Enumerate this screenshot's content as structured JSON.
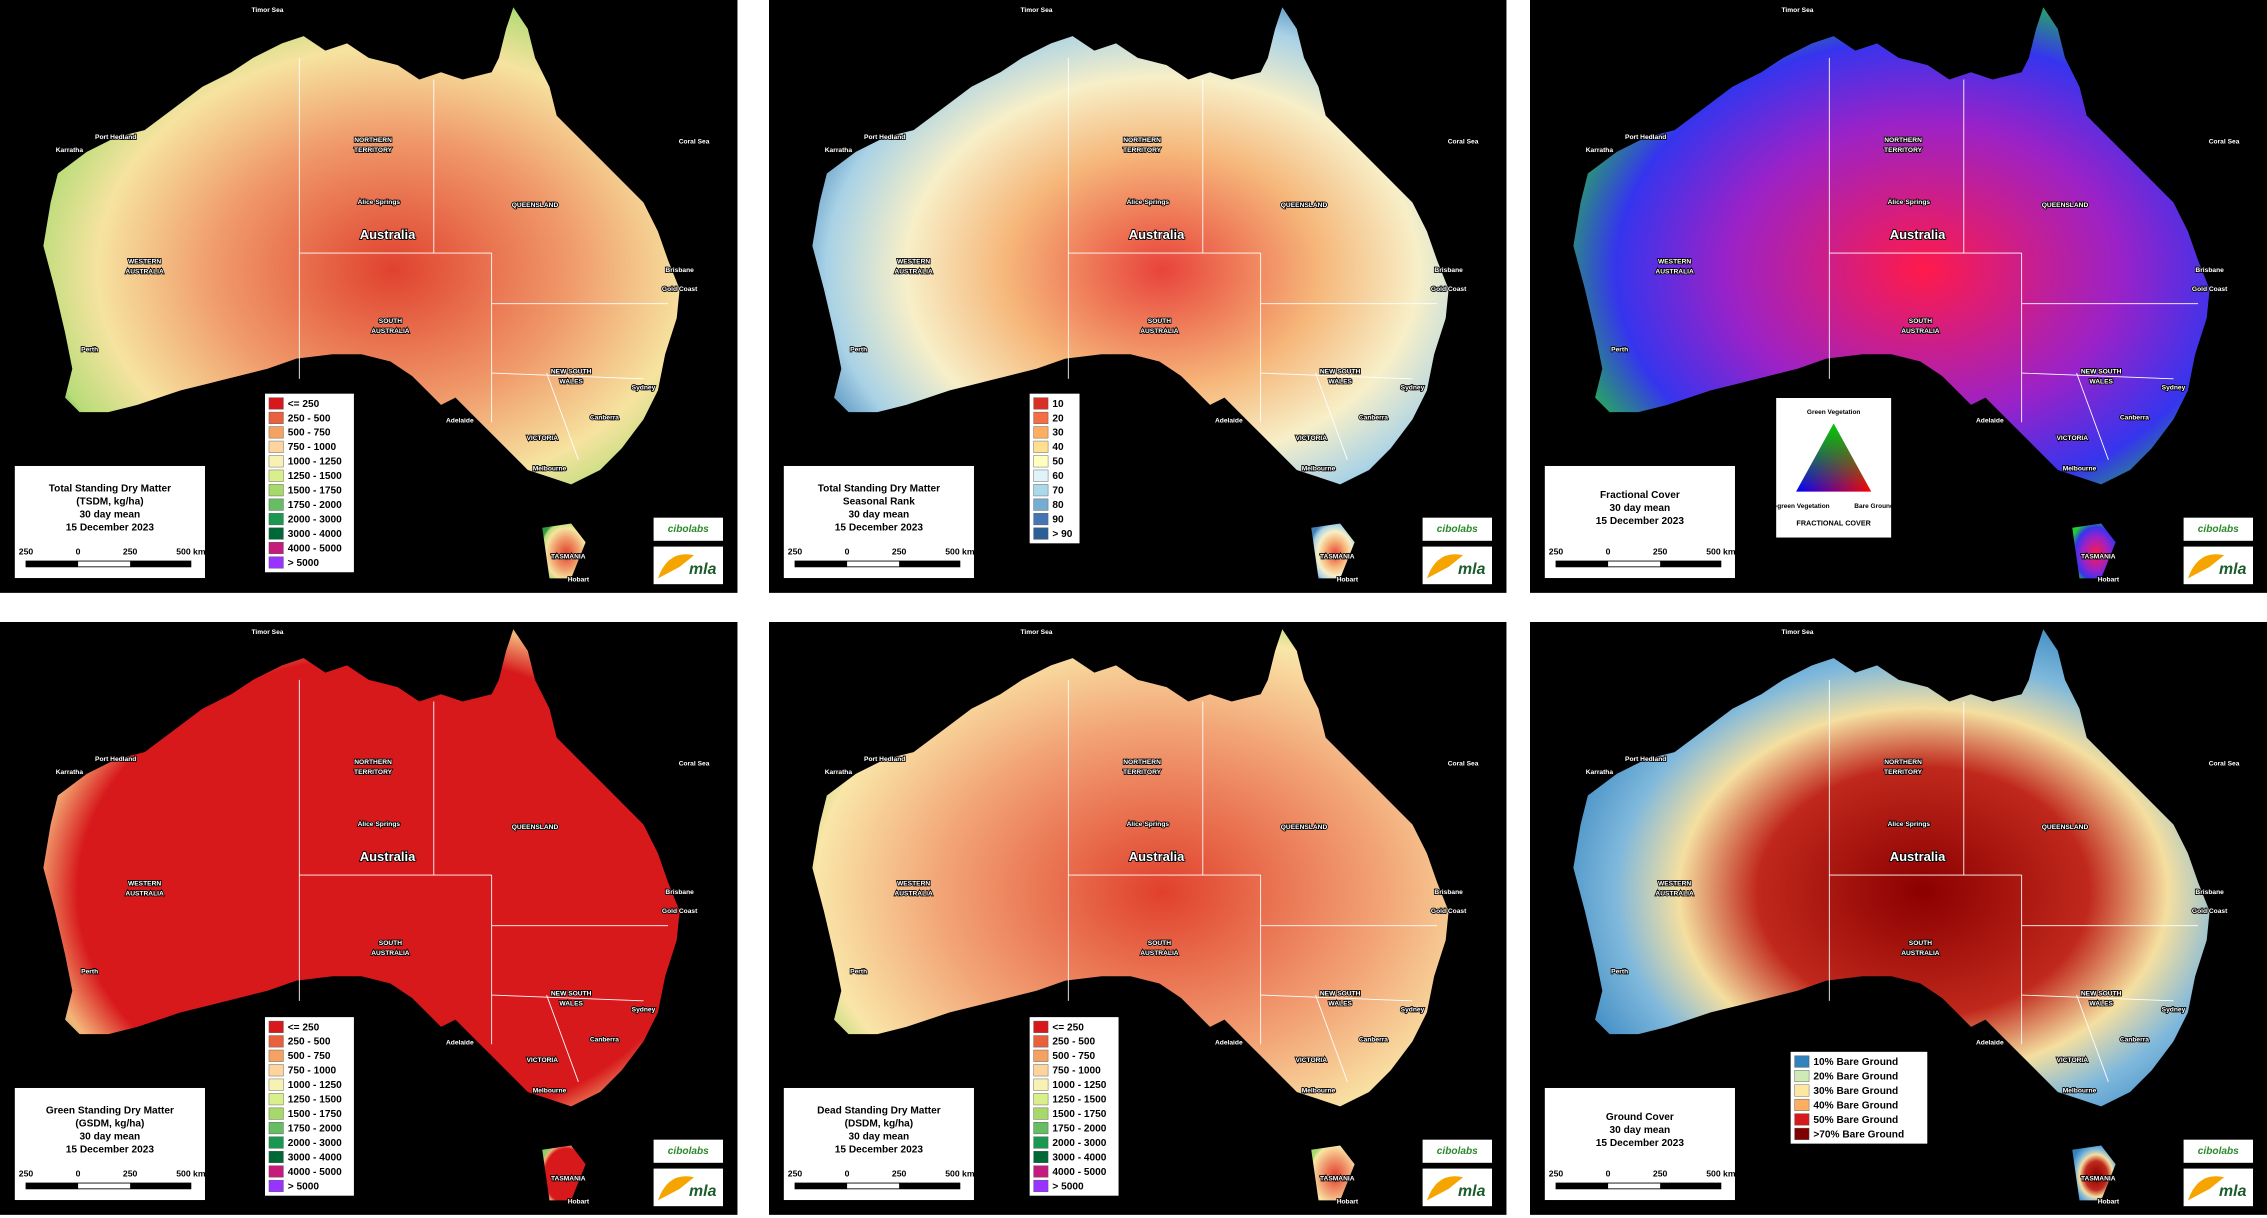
{
  "places": [
    "Timor Sea",
    "Coral Sea",
    "Australia",
    "NORTHERN",
    "TERRITORY",
    "QUEENSLAND",
    "WESTERN",
    "AUSTRALIA",
    "SOUTH",
    "AUSTRALIA",
    "NEW SOUTH",
    "WALES",
    "VICTORIA",
    "TASMANIA",
    "Perth",
    "Adelaide",
    "Melbourne",
    "Sydney",
    "Brisbane",
    "Gold Coast",
    "Canberra",
    "Hobart",
    "Alice Springs",
    "Karratha",
    "Port Hedland"
  ],
  "scale_labels": [
    "250",
    "0",
    "250",
    "500 km"
  ],
  "logos": [
    "cibolabs",
    "mla"
  ],
  "panels": [
    {
      "title_lines": [
        "Total Standing Dry Matter",
        "(TSDM, kg/ha)",
        "30 day mean",
        "15 December 2023"
      ],
      "legend": [
        {
          "label": "<= 250",
          "color": "#d7191c"
        },
        {
          "label": "250 - 500",
          "color": "#e8603c"
        },
        {
          "label": "500 - 750",
          "color": "#f4a262"
        },
        {
          "label": "750 - 1000",
          "color": "#fdd49e"
        },
        {
          "label": "1000 - 1250",
          "color": "#f8f1b4"
        },
        {
          "label": "1250 - 1500",
          "color": "#d9ef8b"
        },
        {
          "label": "1500 - 1750",
          "color": "#a6d96a"
        },
        {
          "label": "1750 - 2000",
          "color": "#66bd63"
        },
        {
          "label": "2000 - 3000",
          "color": "#1a9850"
        },
        {
          "label": "3000 - 4000",
          "color": "#006837"
        },
        {
          "label": "4000 - 5000",
          "color": "#c51b7d"
        },
        {
          "label": "> 5000",
          "color": "#9933ff"
        }
      ]
    },
    {
      "title_lines": [
        "Total Standing Dry Matter",
        "Seasonal Rank",
        "30 day mean",
        "15 December 2023"
      ],
      "legend": [
        {
          "label": "10",
          "color": "#d73027"
        },
        {
          "label": "20",
          "color": "#f46d43"
        },
        {
          "label": "30",
          "color": "#fdae61"
        },
        {
          "label": "40",
          "color": "#fee090"
        },
        {
          "label": "50",
          "color": "#ffffbf"
        },
        {
          "label": "60",
          "color": "#e0f3f8"
        },
        {
          "label": "70",
          "color": "#abd9e9"
        },
        {
          "label": "80",
          "color": "#74add1"
        },
        {
          "label": "90",
          "color": "#4575b4"
        },
        {
          "label": "> 90",
          "color": "#2c5f94"
        }
      ]
    },
    {
      "title_lines": [
        "Fractional Cover",
        "30 day mean",
        "15 December 2023"
      ],
      "triangle": {
        "top": "Green Vegetation",
        "left": "Non-green Vegetation",
        "right": "Bare Ground",
        "caption": "FRACTIONAL COVER",
        "colors": [
          "#00cc00",
          "#0000ff",
          "#ff0000"
        ]
      }
    },
    {
      "title_lines": [
        "Green Standing Dry Matter",
        "(GSDM, kg/ha)",
        "30 day mean",
        "15 December 2023"
      ],
      "legend": [
        {
          "label": "<= 250",
          "color": "#d7191c"
        },
        {
          "label": "250 - 500",
          "color": "#e8603c"
        },
        {
          "label": "500 - 750",
          "color": "#f4a262"
        },
        {
          "label": "750 - 1000",
          "color": "#fdd49e"
        },
        {
          "label": "1000 - 1250",
          "color": "#f8f1b4"
        },
        {
          "label": "1250 - 1500",
          "color": "#d9ef8b"
        },
        {
          "label": "1500 - 1750",
          "color": "#a6d96a"
        },
        {
          "label": "1750 - 2000",
          "color": "#66bd63"
        },
        {
          "label": "2000 - 3000",
          "color": "#1a9850"
        },
        {
          "label": "3000 - 4000",
          "color": "#006837"
        },
        {
          "label": "4000 - 5000",
          "color": "#c51b7d"
        },
        {
          "label": "> 5000",
          "color": "#9933ff"
        }
      ]
    },
    {
      "title_lines": [
        "Dead Standing Dry Matter",
        "(DSDM, kg/ha)",
        "30 day mean",
        "15 December 2023"
      ],
      "legend": [
        {
          "label": "<= 250",
          "color": "#d7191c"
        },
        {
          "label": "250 - 500",
          "color": "#e8603c"
        },
        {
          "label": "500 - 750",
          "color": "#f4a262"
        },
        {
          "label": "750 - 1000",
          "color": "#fdd49e"
        },
        {
          "label": "1000 - 1250",
          "color": "#f8f1b4"
        },
        {
          "label": "1250 - 1500",
          "color": "#d9ef8b"
        },
        {
          "label": "1500 - 1750",
          "color": "#a6d96a"
        },
        {
          "label": "1750 - 2000",
          "color": "#66bd63"
        },
        {
          "label": "2000 - 3000",
          "color": "#1a9850"
        },
        {
          "label": "3000 - 4000",
          "color": "#006837"
        },
        {
          "label": "4000 - 5000",
          "color": "#c51b7d"
        },
        {
          "label": "> 5000",
          "color": "#9933ff"
        }
      ]
    },
    {
      "title_lines": [
        "Ground Cover",
        "30 day mean",
        "15 December 2023"
      ],
      "legend": [
        {
          "label": "10% Bare Ground",
          "color": "#3182bd"
        },
        {
          "label": "20% Bare Ground",
          "color": "#cfeab4"
        },
        {
          "label": "30% Bare Ground",
          "color": "#fee8a0"
        },
        {
          "label": "40% Bare Ground",
          "color": "#fdae61"
        },
        {
          "label": "50% Bare Ground",
          "color": "#d7191c"
        },
        {
          "label": ">70% Bare Ground",
          "color": "#800000"
        }
      ]
    }
  ]
}
